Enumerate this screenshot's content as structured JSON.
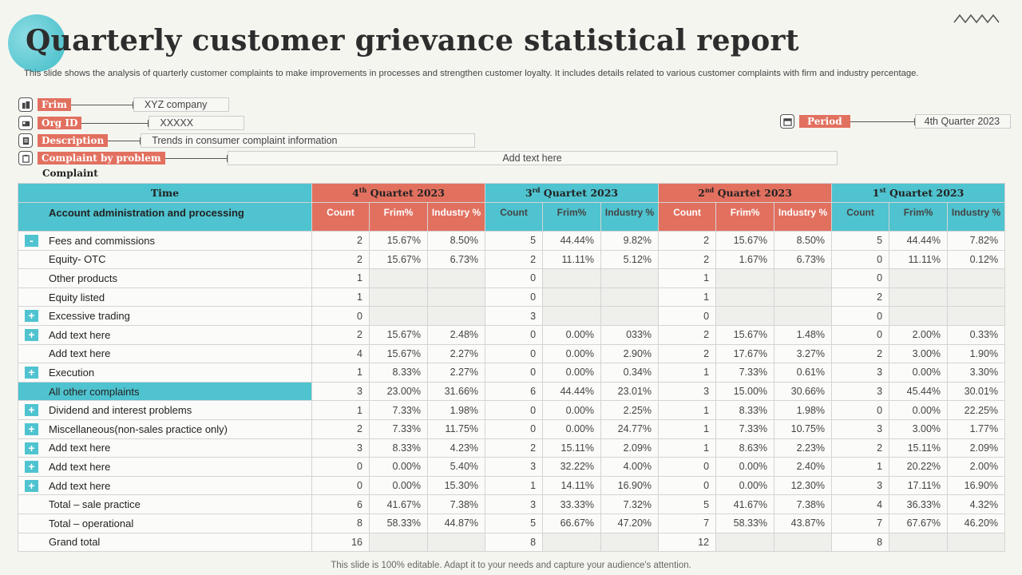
{
  "title": "Quarterly customer grievance statistical report",
  "subtitle": "This slide shows the analysis of quarterly customer complaints to make improvements in processes and strengthen customer loyalty. It includes details related to various customer complaints with firm and industry percentage.",
  "meta": {
    "firm": {
      "label": "Frim",
      "value": "XYZ company",
      "icon": "building-icon"
    },
    "org": {
      "label": "Org ID",
      "value": "XXXXX",
      "icon": "id-card-icon"
    },
    "description": {
      "label": "Description",
      "value": "Trends in consumer complaint information",
      "icon": "document-icon"
    },
    "by_problem": {
      "label": "Complaint by problem",
      "value": "Add text here",
      "icon": "clipboard-icon"
    },
    "period": {
      "label": "Period",
      "value": "4th Quarter 2023",
      "icon": "calendar-icon"
    }
  },
  "complaint_heading": "Complaint",
  "table": {
    "time_label": "Time",
    "first_col_label": "Account administration and processing",
    "quarters": [
      {
        "num": "4",
        "sup": "th",
        "rest": " Quartet 2023",
        "color": "#e2705f"
      },
      {
        "num": "3",
        "sup": "rd",
        "rest": " Quartet 2023",
        "color": "#4fc3cf"
      },
      {
        "num": "2",
        "sup": "nd",
        "rest": " Quartet 2023",
        "color": "#e2705f"
      },
      {
        "num": "1",
        "sup": "st",
        "rest": " Quartet 2023",
        "color": "#4fc3cf"
      }
    ],
    "sub_labels": [
      "Count",
      "Frim%",
      "Industry %"
    ],
    "rows": [
      {
        "name": "Fees and commissions",
        "toggle": "-",
        "highlight": false,
        "cells": [
          "2",
          "15.67%",
          "8.50%",
          "5",
          "44.44%",
          "9.82%",
          "2",
          "15.67%",
          "8.50%",
          "5",
          "44.44%",
          "7.82%"
        ]
      },
      {
        "name": "Equity- OTC",
        "toggle": "",
        "highlight": false,
        "cells": [
          "2",
          "15.67%",
          "6.73%",
          "2",
          "11.11%",
          "5.12%",
          "2",
          "1.67%",
          "6.73%",
          "0",
          "11.11%",
          "0.12%"
        ]
      },
      {
        "name": "Other products",
        "toggle": "",
        "highlight": false,
        "cells": [
          "1",
          "",
          "",
          "0",
          "",
          "",
          "1",
          "",
          "",
          "0",
          "",
          ""
        ]
      },
      {
        "name": "Equity listed",
        "toggle": "",
        "highlight": false,
        "cells": [
          "1",
          "",
          "",
          "0",
          "",
          "",
          "1",
          "",
          "",
          "2",
          "",
          ""
        ]
      },
      {
        "name": "Excessive trading",
        "toggle": "+",
        "highlight": false,
        "cells": [
          "0",
          "",
          "",
          "3",
          "",
          "",
          "0",
          "",
          "",
          "0",
          "",
          ""
        ]
      },
      {
        "name": "Add text here",
        "toggle": "+",
        "highlight": false,
        "cells": [
          "2",
          "15.67%",
          "2.48%",
          "0",
          "0.00%",
          "033%",
          "2",
          "15.67%",
          "1.48%",
          "0",
          "2.00%",
          "0.33%"
        ]
      },
      {
        "name": "Add text here",
        "toggle": "",
        "highlight": false,
        "cells": [
          "4",
          "15.67%",
          "2.27%",
          "0",
          "0.00%",
          "2.90%",
          "2",
          "17.67%",
          "3.27%",
          "2",
          "3.00%",
          "1.90%"
        ]
      },
      {
        "name": "Execution",
        "toggle": "+",
        "highlight": false,
        "cells": [
          "1",
          "8.33%",
          "2.27%",
          "0",
          "0.00%",
          "0.34%",
          "1",
          "7.33%",
          "0.61%",
          "3",
          "0.00%",
          "3.30%"
        ]
      },
      {
        "name": "All other complaints",
        "toggle": "",
        "highlight": true,
        "cells": [
          "3",
          "23.00%",
          "31.66%",
          "6",
          "44.44%",
          "23.01%",
          "3",
          "15.00%",
          "30.66%",
          "3",
          "45.44%",
          "30.01%"
        ]
      },
      {
        "name": "Dividend and interest problems",
        "toggle": "+",
        "highlight": false,
        "cells": [
          "1",
          "7.33%",
          "1.98%",
          "0",
          "0.00%",
          "2.25%",
          "1",
          "8.33%",
          "1.98%",
          "0",
          "0.00%",
          "22.25%"
        ]
      },
      {
        "name": "Miscellaneous(non-sales practice only)",
        "toggle": "+",
        "highlight": false,
        "cells": [
          "2",
          "7.33%",
          "11.75%",
          "0",
          "0.00%",
          "24.77%",
          "1",
          "7.33%",
          "10.75%",
          "3",
          "3.00%",
          "1.77%"
        ]
      },
      {
        "name": "Add text here",
        "toggle": "+",
        "highlight": false,
        "cells": [
          "3",
          "8.33%",
          "4.23%",
          "2",
          "15.11%",
          "2.09%",
          "1",
          "8.63%",
          "2.23%",
          "2",
          "15.11%",
          "2.09%"
        ]
      },
      {
        "name": "Add text here",
        "toggle": "+",
        "highlight": false,
        "cells": [
          "0",
          "0.00%",
          "5.40%",
          "3",
          "32.22%",
          "4.00%",
          "0",
          "0.00%",
          "2.40%",
          "1",
          "20.22%",
          "2.00%"
        ]
      },
      {
        "name": "Add text here",
        "toggle": "+",
        "highlight": false,
        "cells": [
          "0",
          "0.00%",
          "15.30%",
          "1",
          "14.11%",
          "16.90%",
          "0",
          "0.00%",
          "12.30%",
          "3",
          "17.11%",
          "16.90%"
        ]
      },
      {
        "name": "Total – sale practice",
        "toggle": "",
        "highlight": false,
        "cells": [
          "6",
          "41.67%",
          "7.38%",
          "3",
          "33.33%",
          "7.32%",
          "5",
          "41.67%",
          "7.38%",
          "4",
          "36.33%",
          "4.32%"
        ]
      },
      {
        "name": "Total – operational",
        "toggle": "",
        "highlight": false,
        "cells": [
          "8",
          "58.33%",
          "44.87%",
          "5",
          "66.67%",
          "47.20%",
          "7",
          "58.33%",
          "43.87%",
          "7",
          "67.67%",
          "46.20%"
        ]
      },
      {
        "name": "Grand total",
        "toggle": "",
        "highlight": false,
        "cells": [
          "16",
          "",
          "",
          "8",
          "",
          "",
          "12",
          "",
          "",
          "8",
          "",
          ""
        ]
      }
    ]
  },
  "footer": "This slide is 100% editable. Adapt it to your needs and capture your audience's attention.",
  "colors": {
    "accent_red": "#e2705f",
    "accent_teal": "#4fc3cf"
  }
}
